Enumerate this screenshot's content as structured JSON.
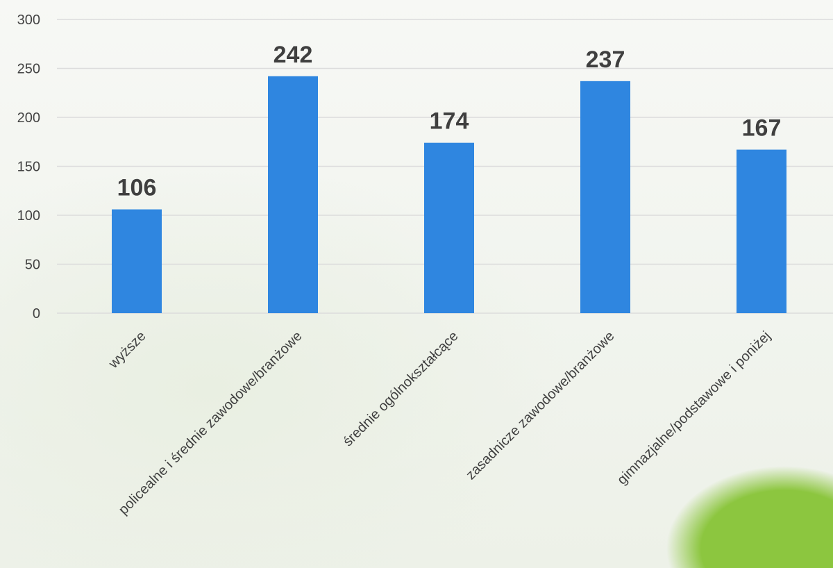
{
  "chart_data": {
    "type": "bar",
    "title": "",
    "xlabel": "",
    "ylabel": "",
    "categories": [
      "wyższe",
      "policealne i średnie zawodowe/branżowe",
      "średnie ogólnokształcące",
      "zasadnicze zawodowe/branżowe",
      "gimnazjalne/podstawowe i poniżej"
    ],
    "values": [
      106,
      242,
      174,
      237,
      167
    ],
    "data_labels": [
      "106",
      "242",
      "174",
      "237",
      "167"
    ],
    "ylim": [
      0,
      300
    ],
    "yticks": [
      0,
      50,
      100,
      150,
      200,
      250,
      300
    ],
    "ytick_labels": [
      "0",
      "50",
      "100",
      "150",
      "200",
      "250",
      "300"
    ],
    "grid": true,
    "legend": "none",
    "bar_color": "#2f86e0",
    "grid_color": "#dcdcdc"
  }
}
